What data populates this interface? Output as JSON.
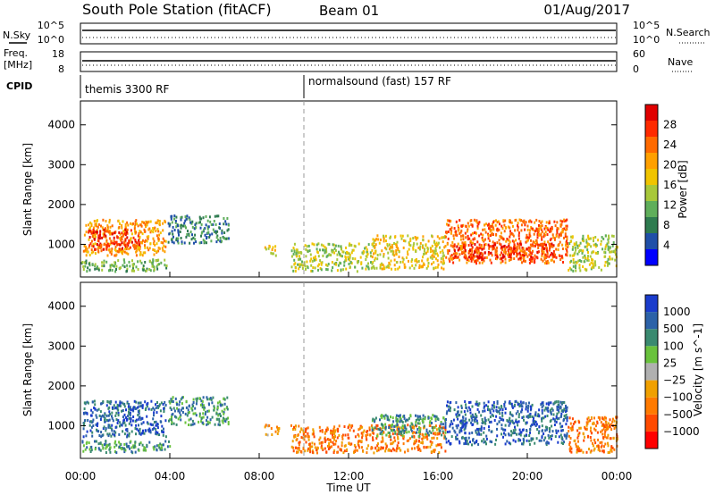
{
  "header": {
    "title": "South Pole Station (fitACF)",
    "beam": "Beam 01",
    "date": "01/Aug/2017"
  },
  "top_panels": {
    "nsky_label": "N.Sky",
    "nsearch_label": "N.Search",
    "noise_ticks": [
      "10^5",
      "10^0"
    ],
    "freq_label": "Freq.",
    "freq_unit": "[MHz]",
    "freq_ticks": [
      "18",
      "8"
    ],
    "nave_label": "Nave",
    "nave_ticks": [
      "60",
      "0"
    ],
    "cpid_label": "CPID",
    "cpid_segments": [
      {
        "label": "themis 3300 RF",
        "start_hour": 0.0
      },
      {
        "label": "normalsound (fast) 157 RF",
        "start_hour": 10.0
      }
    ]
  },
  "chart_data": [
    {
      "type": "heatmap",
      "name": "power",
      "title": "",
      "xlabel": "",
      "ylabel": "Slant Range [km]",
      "xlim": [
        0,
        24
      ],
      "ylim": [
        180,
        4600
      ],
      "yticks": [
        "1000",
        "2000",
        "3000",
        "4000"
      ],
      "ytick_values": [
        1000,
        2000,
        3000,
        4000
      ],
      "colorbar": {
        "label": "Power [dB]",
        "ticks": [
          "4",
          "8",
          "12",
          "16",
          "20",
          "24",
          "28"
        ],
        "range": [
          0,
          32
        ],
        "colors": [
          "#0000ff",
          "#1f4fa8",
          "#2e7b4f",
          "#5fae5a",
          "#a8c83a",
          "#f0c400",
          "#ffa000",
          "#ff6a00",
          "#ff2a00",
          "#e00000"
        ]
      },
      "regions": [
        {
          "t": [
            0.1,
            3.8
          ],
          "r": [
            750,
            1650
          ],
          "level": 22
        },
        {
          "t": [
            0.3,
            2.6
          ],
          "r": [
            900,
            1400
          ],
          "level": 27
        },
        {
          "t": [
            0.0,
            4.0
          ],
          "r": [
            350,
            650
          ],
          "level": 12
        },
        {
          "t": [
            3.9,
            6.6
          ],
          "r": [
            1050,
            1750
          ],
          "level": 8
        },
        {
          "t": [
            8.2,
            8.9
          ],
          "r": [
            750,
            1050
          ],
          "level": 18
        },
        {
          "t": [
            9.4,
            13.0
          ],
          "r": [
            350,
            1050
          ],
          "level": 14
        },
        {
          "t": [
            13.0,
            16.3
          ],
          "r": [
            400,
            1250
          ],
          "level": 17
        },
        {
          "t": [
            16.3,
            21.8
          ],
          "r": [
            550,
            1650
          ],
          "level": 24
        },
        {
          "t": [
            16.6,
            21.2
          ],
          "r": [
            650,
            1050
          ],
          "level": 28
        },
        {
          "t": [
            21.8,
            24.0
          ],
          "r": [
            350,
            1250
          ],
          "level": 14
        }
      ]
    },
    {
      "type": "heatmap",
      "name": "velocity",
      "title": "",
      "xlabel": "Time UT",
      "ylabel": "Slant Range [km]",
      "xlim": [
        0,
        24
      ],
      "ylim": [
        180,
        4600
      ],
      "xticks": [
        "00:00",
        "04:00",
        "08:00",
        "12:00",
        "16:00",
        "20:00",
        "00:00"
      ],
      "xtick_values": [
        0,
        4,
        8,
        12,
        16,
        20,
        24
      ],
      "yticks": [
        "1000",
        "2000",
        "3000",
        "4000"
      ],
      "ytick_values": [
        1000,
        2000,
        3000,
        4000
      ],
      "colorbar": {
        "label": "Velocity [m s^-1]",
        "ticks": [
          "1000",
          "500",
          "100",
          "25",
          "−25",
          "−100",
          "−500",
          "−1000"
        ],
        "colors": [
          "#1a3ccc",
          "#2c62a8",
          "#3a8a70",
          "#69c23c",
          "#b0b0b0",
          "#f0a000",
          "#ff7a00",
          "#ff4a00",
          "#ff0000"
        ]
      },
      "regions": [
        {
          "t": [
            0.1,
            3.8
          ],
          "r": [
            750,
            1650
          ],
          "level": 1
        },
        {
          "t": [
            0.0,
            4.0
          ],
          "r": [
            350,
            650
          ],
          "level": 2
        },
        {
          "t": [
            3.9,
            6.6
          ],
          "r": [
            1050,
            1750
          ],
          "level": 2
        },
        {
          "t": [
            8.2,
            8.9
          ],
          "r": [
            750,
            1050
          ],
          "level": 5
        },
        {
          "t": [
            9.4,
            16.3
          ],
          "r": [
            350,
            1050
          ],
          "level": 6
        },
        {
          "t": [
            13.0,
            16.3
          ],
          "r": [
            750,
            1300
          ],
          "level": 2
        },
        {
          "t": [
            16.3,
            21.8
          ],
          "r": [
            550,
            1650
          ],
          "level": 1
        },
        {
          "t": [
            21.8,
            24.0
          ],
          "r": [
            350,
            1250
          ],
          "level": 6
        }
      ]
    }
  ]
}
